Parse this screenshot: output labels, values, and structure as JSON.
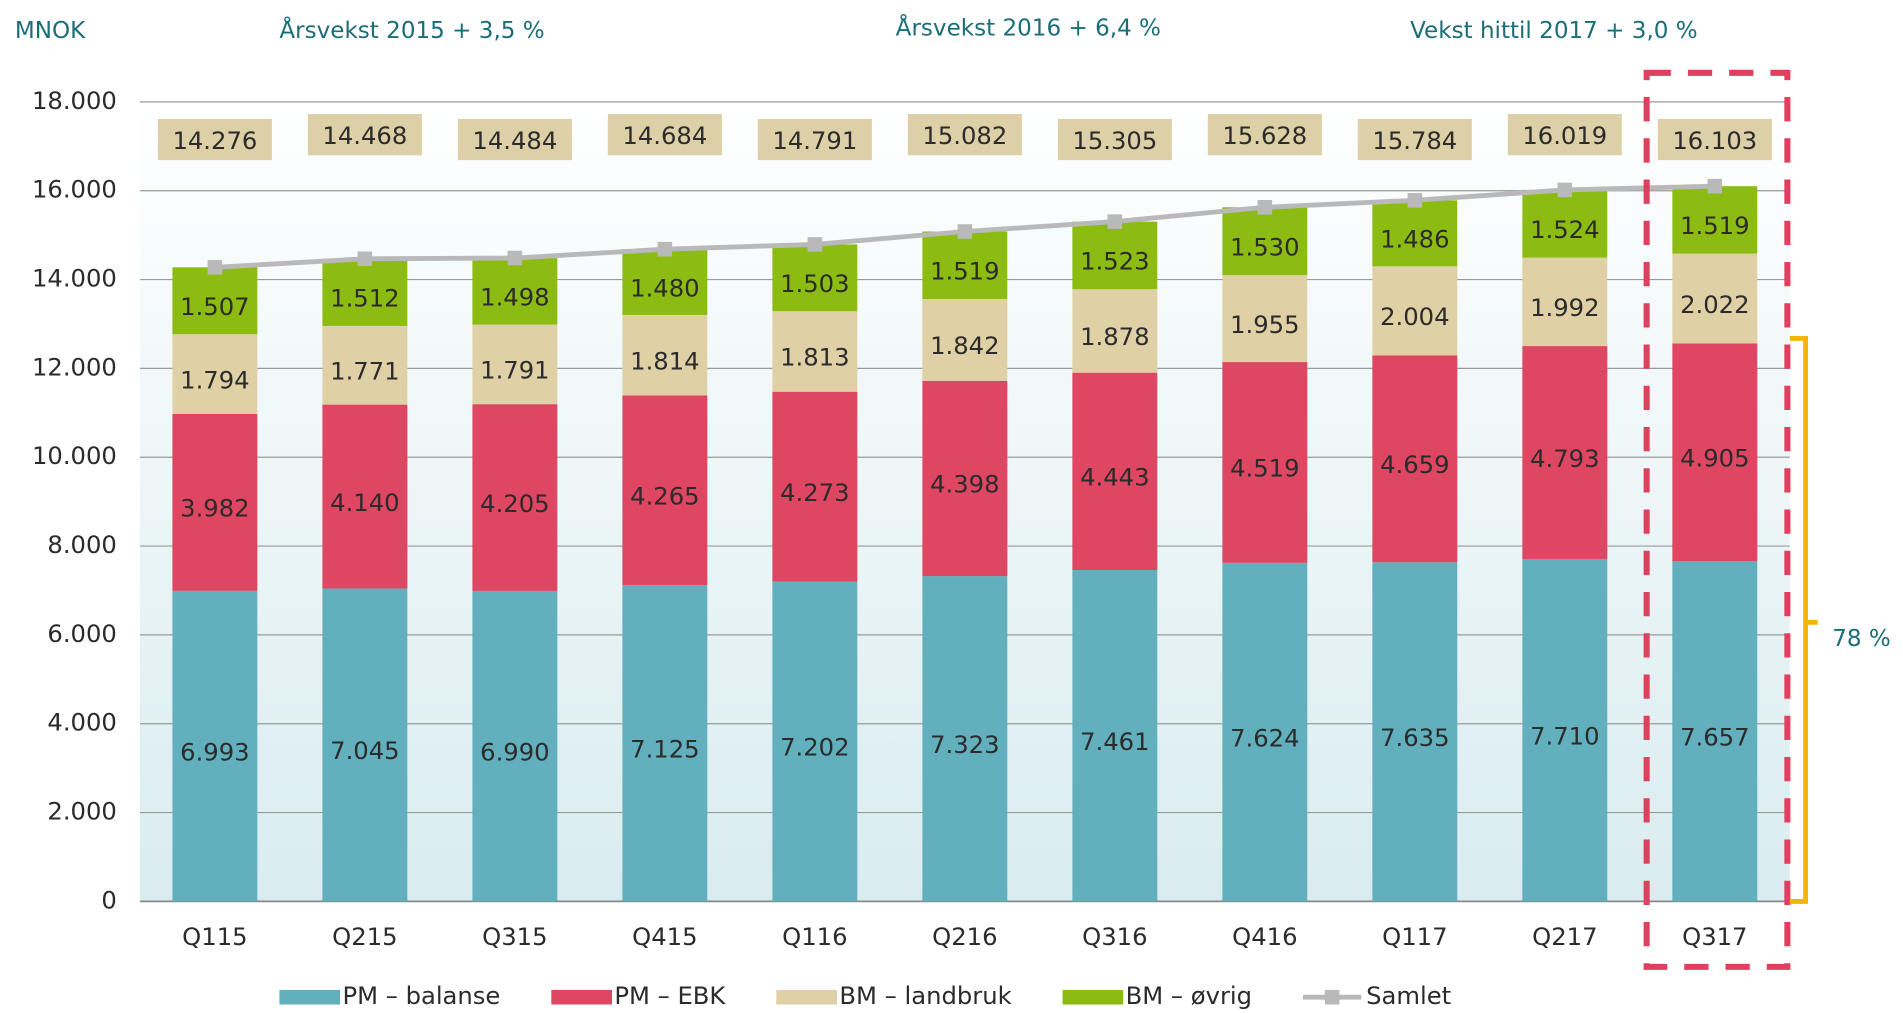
{
  "chart_data": {
    "type": "bar",
    "stacked": true,
    "annotations": [
      "MNOK",
      "Årsvekst 2015 + 3,5 %",
      "Årsvekst 2016 + 6,4 %",
      "Vekst hittil 2017 + 3,0 %",
      "78 %"
    ],
    "categories": [
      "Q115",
      "Q215",
      "Q315",
      "Q415",
      "Q116",
      "Q216",
      "Q316",
      "Q416",
      "Q117",
      "Q217",
      "Q317"
    ],
    "series": [
      {
        "name": "PM – balanse",
        "color": "#62b0bd",
        "values": [
          6993,
          7045,
          6990,
          7125,
          7202,
          7323,
          7461,
          7624,
          7635,
          7710,
          7657
        ],
        "value_labels": [
          "6.993",
          "7.045",
          "6.990",
          "7.125",
          "7.202",
          "7.323",
          "7.461",
          "7.624",
          "7.635",
          "7.710",
          "7.657"
        ]
      },
      {
        "name": "PM – EBK",
        "color": "#de4661",
        "values": [
          3982,
          4140,
          4205,
          4265,
          4273,
          4398,
          4443,
          4519,
          4659,
          4793,
          4905
        ],
        "value_labels": [
          "3.982",
          "4.140",
          "4.205",
          "4.265",
          "4.273",
          "4.398",
          "4.443",
          "4.519",
          "4.659",
          "4.793",
          "4.905"
        ]
      },
      {
        "name": "BM – landbruk",
        "color": "#dfd0a5",
        "values": [
          1794,
          1771,
          1791,
          1814,
          1813,
          1842,
          1878,
          1955,
          2004,
          1992,
          2022
        ],
        "value_labels": [
          "1.794",
          "1.771",
          "1.791",
          "1.814",
          "1.813",
          "1.842",
          "1.878",
          "1.955",
          "2.004",
          "1.992",
          "2.022"
        ]
      },
      {
        "name": "BM – øvrig",
        "color": "#8cbb12",
        "values": [
          1507,
          1512,
          1498,
          1480,
          1503,
          1519,
          1523,
          1530,
          1486,
          1524,
          1519
        ],
        "value_labels": [
          "1.507",
          "1.512",
          "1.498",
          "1.480",
          "1.503",
          "1.519",
          "1.523",
          "1.530",
          "1.486",
          "1.524",
          "1.519"
        ]
      },
      {
        "name": "Samlet",
        "type": "line",
        "color": "#b9b9b9",
        "values": [
          14276,
          14468,
          14484,
          14684,
          14791,
          15082,
          15305,
          15628,
          15784,
          16019,
          16103
        ],
        "value_labels": [
          "14.276",
          "14.468",
          "14.484",
          "14.684",
          "14.791",
          "15.082",
          "15.305",
          "15.628",
          "15.784",
          "16.019",
          "16.103"
        ]
      }
    ],
    "ylim": [
      0,
      18000
    ],
    "yticks": [
      0,
      {
        "value": 2000,
        "label": "2.000"
      },
      {
        "value": 4000,
        "label": "4.000"
      },
      {
        "value": 6000,
        "label": "6.000"
      },
      {
        "value": 8000,
        "label": "8.000"
      },
      {
        "value": 10000,
        "label": "10.000"
      },
      {
        "value": 12000,
        "label": "12.000"
      },
      {
        "value": 14000,
        "label": "14.000"
      },
      {
        "value": 16000,
        "label": "16.000"
      },
      {
        "value": 18000,
        "label": "18.000"
      }
    ],
    "grid": true,
    "legend": "bottom"
  }
}
